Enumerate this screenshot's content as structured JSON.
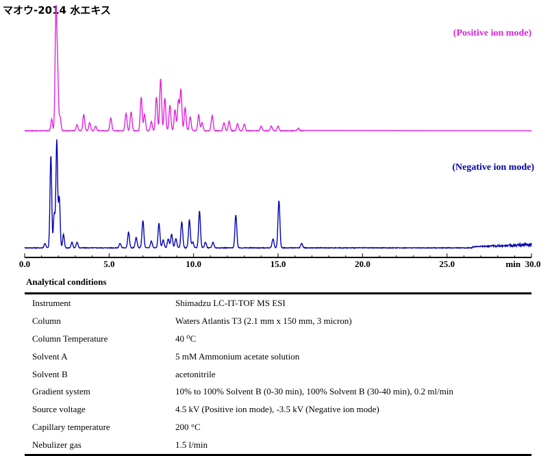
{
  "title": "マオウ-2014 水エキス",
  "chart_data": {
    "type": "line",
    "xlim": [
      0,
      30
    ],
    "xlabel": "min",
    "ticks": [
      "0.0",
      "5.0",
      "10.0",
      "15.0",
      "20.0",
      "25.0",
      "30.0"
    ],
    "tick_values": [
      0,
      5,
      10,
      15,
      20,
      25,
      30
    ],
    "series": [
      {
        "name": "(Positive ion mode)",
        "color": "#e020e0",
        "peaks": [
          [
            1.6,
            0.1
          ],
          [
            1.85,
            1.0
          ],
          [
            1.95,
            0.5
          ],
          [
            2.1,
            0.12
          ],
          [
            3.1,
            0.05
          ],
          [
            3.5,
            0.14
          ],
          [
            3.85,
            0.07
          ],
          [
            4.2,
            0.04
          ],
          [
            5.1,
            0.11
          ],
          [
            6.0,
            0.15
          ],
          [
            6.3,
            0.16
          ],
          [
            6.9,
            0.29
          ],
          [
            7.1,
            0.14
          ],
          [
            7.5,
            0.08
          ],
          [
            7.8,
            0.29
          ],
          [
            8.05,
            0.45
          ],
          [
            8.3,
            0.28
          ],
          [
            8.6,
            0.22
          ],
          [
            8.9,
            0.18
          ],
          [
            9.1,
            0.26
          ],
          [
            9.25,
            0.35
          ],
          [
            9.5,
            0.2
          ],
          [
            9.8,
            0.12
          ],
          [
            10.3,
            0.14
          ],
          [
            10.5,
            0.07
          ],
          [
            11.1,
            0.13
          ],
          [
            11.8,
            0.07
          ],
          [
            12.1,
            0.08
          ],
          [
            12.6,
            0.06
          ],
          [
            13.0,
            0.06
          ],
          [
            14.0,
            0.04
          ],
          [
            14.6,
            0.04
          ],
          [
            15.0,
            0.04
          ],
          [
            16.2,
            0.02
          ]
        ],
        "x_range": [
          0,
          16.5
        ]
      },
      {
        "name": "(Negative ion mode)",
        "color": "#0000b0",
        "peaks": [
          [
            1.2,
            0.04
          ],
          [
            1.55,
            0.82
          ],
          [
            1.75,
            0.3
          ],
          [
            1.9,
            0.95
          ],
          [
            2.05,
            0.45
          ],
          [
            2.3,
            0.12
          ],
          [
            2.8,
            0.05
          ],
          [
            3.1,
            0.05
          ],
          [
            5.65,
            0.04
          ],
          [
            6.15,
            0.14
          ],
          [
            6.6,
            0.09
          ],
          [
            7.0,
            0.24
          ],
          [
            7.5,
            0.06
          ],
          [
            7.95,
            0.22
          ],
          [
            8.2,
            0.07
          ],
          [
            8.5,
            0.08
          ],
          [
            8.7,
            0.12
          ],
          [
            8.95,
            0.08
          ],
          [
            9.3,
            0.23
          ],
          [
            9.75,
            0.25
          ],
          [
            9.95,
            0.05
          ],
          [
            10.35,
            0.33
          ],
          [
            10.7,
            0.05
          ],
          [
            11.15,
            0.05
          ],
          [
            12.5,
            0.29
          ],
          [
            14.7,
            0.08
          ],
          [
            15.05,
            0.42
          ],
          [
            16.4,
            0.04
          ]
        ],
        "x_range": [
          0,
          30
        ]
      }
    ]
  },
  "conditions": {
    "heading": "Analytical conditions",
    "rows": [
      {
        "label": "Instrument",
        "value": "Shimadzu LC-IT-TOF MS ESI"
      },
      {
        "label": "Column",
        "value": "Waters Atlantis T3 (2.1 mm x 150 mm, 3 micron)"
      },
      {
        "label": "Column Temperature",
        "value": "40 ⁰C"
      },
      {
        "label": "Solvent A",
        "value": "5 mM Ammonium acetate solution"
      },
      {
        "label": "Solvent B",
        "value": "acetonitrile"
      },
      {
        "label": "Gradient system",
        "value": "10% to 100% Solvent B (0-30 min), 100% Solvent B (30-40 min), 0.2 ml/min"
      },
      {
        "label": "Source voltage",
        "value": "4.5 kV (Positive ion mode), -3.5 kV (Negative ion mode)"
      },
      {
        "label": "Capillary temperature",
        "value": "200 °C"
      },
      {
        "label": "Nebulizer gas",
        "value": "1.5 l/min"
      }
    ]
  }
}
